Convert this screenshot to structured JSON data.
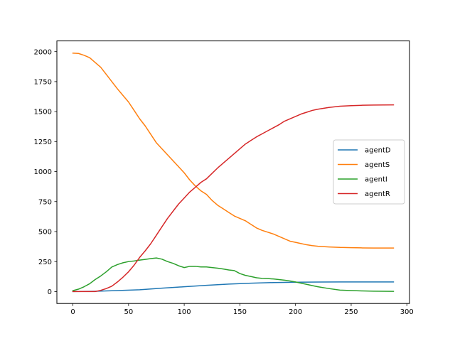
{
  "chart_data": {
    "type": "line",
    "title": "",
    "xlabel": "",
    "ylabel": "",
    "xlim": [
      -14.4,
      302.4
    ],
    "ylim": [
      -99.5,
      2089.5
    ],
    "x_ticks": [
      0,
      50,
      100,
      150,
      200,
      250,
      300
    ],
    "y_ticks": [
      0,
      250,
      500,
      750,
      1000,
      1250,
      1500,
      1750,
      2000
    ],
    "grid": false,
    "legend_position": "center-right",
    "series": [
      {
        "name": "agentD",
        "color": "#1f77b4",
        "x": [
          0,
          20,
          40,
          60,
          80,
          100,
          120,
          140,
          160,
          180,
          200,
          220,
          240,
          260,
          288
        ],
        "y": [
          0,
          2,
          8,
          15,
          28,
          40,
          52,
          62,
          70,
          75,
          78,
          79,
          80,
          80,
          80
        ]
      },
      {
        "name": "agentS",
        "color": "#ff7f0e",
        "x": [
          0,
          5,
          10,
          15,
          20,
          25,
          30,
          35,
          40,
          45,
          50,
          55,
          60,
          65,
          70,
          75,
          80,
          85,
          90,
          95,
          100,
          105,
          110,
          115,
          120,
          125,
          130,
          135,
          140,
          145,
          150,
          155,
          160,
          165,
          170,
          175,
          180,
          185,
          190,
          195,
          200,
          205,
          210,
          215,
          220,
          230,
          240,
          250,
          260,
          270,
          288
        ],
        "y": [
          1988,
          1985,
          1970,
          1950,
          1910,
          1870,
          1810,
          1750,
          1690,
          1635,
          1580,
          1510,
          1440,
          1380,
          1310,
          1240,
          1190,
          1140,
          1090,
          1040,
          990,
          930,
          880,
          840,
          810,
          760,
          720,
          690,
          660,
          630,
          610,
          590,
          560,
          530,
          510,
          495,
          480,
          460,
          440,
          420,
          410,
          400,
          390,
          383,
          378,
          372,
          368,
          366,
          364,
          363,
          363
        ]
      },
      {
        "name": "agentI",
        "color": "#2ca02c",
        "x": [
          0,
          5,
          10,
          15,
          20,
          25,
          30,
          35,
          40,
          45,
          50,
          55,
          60,
          65,
          70,
          75,
          80,
          85,
          90,
          95,
          100,
          105,
          110,
          115,
          120,
          125,
          130,
          135,
          140,
          145,
          150,
          155,
          160,
          165,
          170,
          175,
          180,
          185,
          190,
          195,
          200,
          205,
          210,
          215,
          220,
          230,
          240,
          250,
          260,
          270,
          288
        ],
        "y": [
          8,
          20,
          40,
          65,
          100,
          130,
          165,
          205,
          225,
          240,
          250,
          255,
          262,
          268,
          275,
          280,
          270,
          250,
          235,
          215,
          200,
          210,
          210,
          205,
          205,
          200,
          195,
          188,
          180,
          175,
          150,
          135,
          125,
          115,
          110,
          108,
          105,
          100,
          95,
          88,
          80,
          70,
          60,
          50,
          40,
          25,
          12,
          8,
          5,
          3,
          2
        ]
      },
      {
        "name": "agentR",
        "color": "#d62728",
        "x": [
          0,
          5,
          10,
          15,
          20,
          25,
          30,
          35,
          40,
          45,
          50,
          55,
          60,
          65,
          70,
          75,
          80,
          85,
          90,
          95,
          100,
          105,
          110,
          115,
          120,
          125,
          130,
          135,
          140,
          145,
          150,
          155,
          160,
          165,
          170,
          175,
          180,
          185,
          190,
          195,
          200,
          205,
          210,
          215,
          220,
          230,
          240,
          250,
          260,
          270,
          288
        ],
        "y": [
          0,
          0,
          0,
          0,
          0,
          10,
          25,
          45,
          80,
          120,
          165,
          220,
          285,
          340,
          400,
          470,
          540,
          610,
          670,
          730,
          780,
          830,
          870,
          910,
          940,
          985,
          1030,
          1070,
          1110,
          1150,
          1190,
          1230,
          1260,
          1290,
          1315,
          1340,
          1365,
          1390,
          1420,
          1440,
          1460,
          1480,
          1495,
          1510,
          1520,
          1535,
          1545,
          1550,
          1553,
          1555,
          1556
        ]
      }
    ]
  }
}
